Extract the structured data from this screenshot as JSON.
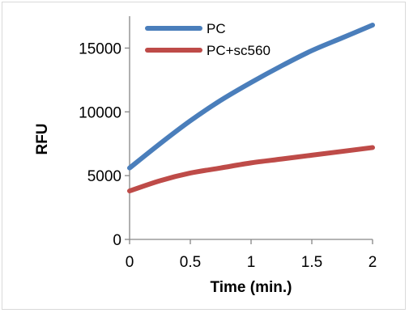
{
  "chart_data": {
    "type": "line",
    "title": "",
    "xlabel": "Time (min.)",
    "ylabel": "RFU",
    "xlim": [
      0,
      2
    ],
    "ylim": [
      0,
      17500
    ],
    "x_ticks": [
      0,
      0.5,
      1,
      1.5,
      2
    ],
    "x_tick_labels": [
      "0",
      "0.5",
      "1",
      "1.5",
      "2"
    ],
    "y_ticks": [
      0,
      5000,
      10000,
      15000
    ],
    "y_tick_labels": [
      "0",
      "5000",
      "10000",
      "15000"
    ],
    "grid": false,
    "legend_position": "top",
    "series": [
      {
        "name": "PC",
        "color": "#4a7ebb",
        "x": [
          0,
          0.25,
          0.5,
          0.75,
          1,
          1.25,
          1.5,
          1.75,
          2
        ],
        "y": [
          5600,
          7500,
          9300,
          10900,
          12300,
          13600,
          14800,
          15800,
          16800
        ]
      },
      {
        "name": "PC+sc560",
        "color": "#be4b48",
        "x": [
          0,
          0.25,
          0.5,
          0.75,
          1,
          1.25,
          1.5,
          1.75,
          2
        ],
        "y": [
          3800,
          4600,
          5200,
          5600,
          6000,
          6300,
          6600,
          6900,
          7200
        ]
      }
    ]
  }
}
